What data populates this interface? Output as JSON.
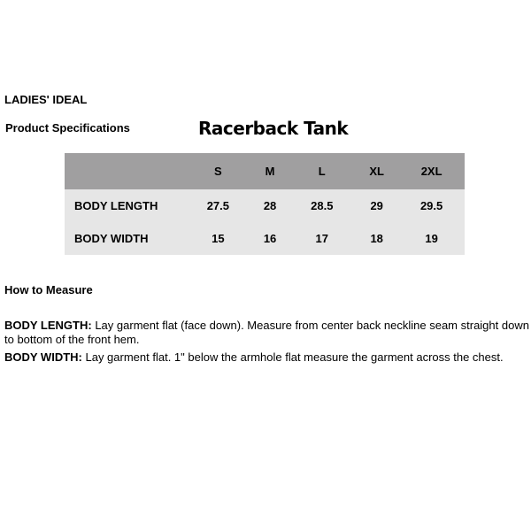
{
  "brand": "LADIES' IDEAL",
  "section_label": "Product Specifications",
  "product_title": "Racerback Tank",
  "table": {
    "sizes": [
      "S",
      "M",
      "L",
      "XL",
      "2XL"
    ],
    "rows": [
      {
        "label": "BODY LENGTH",
        "values": [
          "27.5",
          "28",
          "28.5",
          "29",
          "29.5"
        ]
      },
      {
        "label": "BODY WIDTH",
        "values": [
          "15",
          "16",
          "17",
          "18",
          "19"
        ]
      }
    ],
    "header_color": "#a09fa0",
    "body_color": "#e6e6e6"
  },
  "how_to_measure": {
    "heading": "How to Measure",
    "items": [
      {
        "term": "BODY LENGTH:",
        "text": " Lay garment flat (face down). Measure from center back neckline seam straight down to bottom of the front hem."
      },
      {
        "term": "BODY WIDTH:",
        "text": " Lay garment flat. 1\" below the armhole flat measure the garment across the chest."
      }
    ]
  }
}
